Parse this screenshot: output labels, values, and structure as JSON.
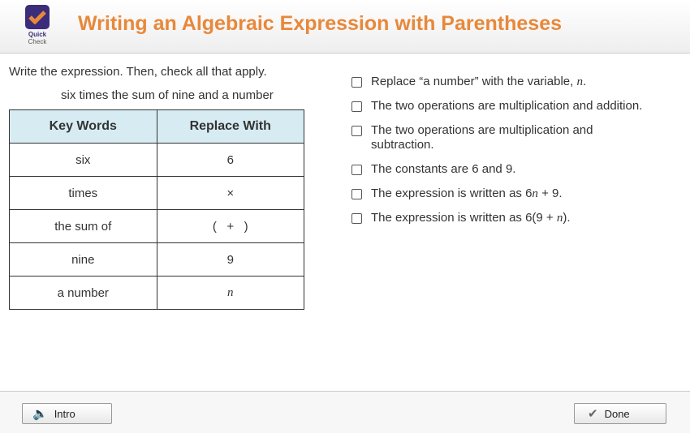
{
  "logo": {
    "line1": "Quick",
    "line2": "Check",
    "color": "#3b2d7a",
    "check_color": "#e8883a"
  },
  "title": "Writing an Algebraic Expression with Parentheses",
  "instruction": "Write the expression. Then, check all that apply.",
  "phrase": "six times the sum of nine and a number",
  "table": {
    "headers": [
      "Key Words",
      "Replace With"
    ],
    "rows": [
      [
        "six",
        "6"
      ],
      [
        "times",
        "×"
      ],
      [
        "the sum of",
        "(   +   )"
      ],
      [
        "nine",
        "9"
      ],
      [
        "a number",
        "n"
      ]
    ]
  },
  "options": [
    {
      "label": "Replace “a number” with the variable, n.",
      "checked": false
    },
    {
      "label": "The two operations are multiplication and addition.",
      "checked": false
    },
    {
      "label": "The two operations are multiplication and subtraction.",
      "checked": false
    },
    {
      "label": "The constants are 6 and 9.",
      "checked": false
    },
    {
      "label": "The expression is written as 6n + 9.",
      "checked": false
    },
    {
      "label": "The expression is written as 6(9 + n).",
      "checked": false
    }
  ],
  "footer": {
    "intro": "Intro",
    "done": "Done",
    "intro_icon": "speaker-icon",
    "done_icon": "check-icon"
  }
}
